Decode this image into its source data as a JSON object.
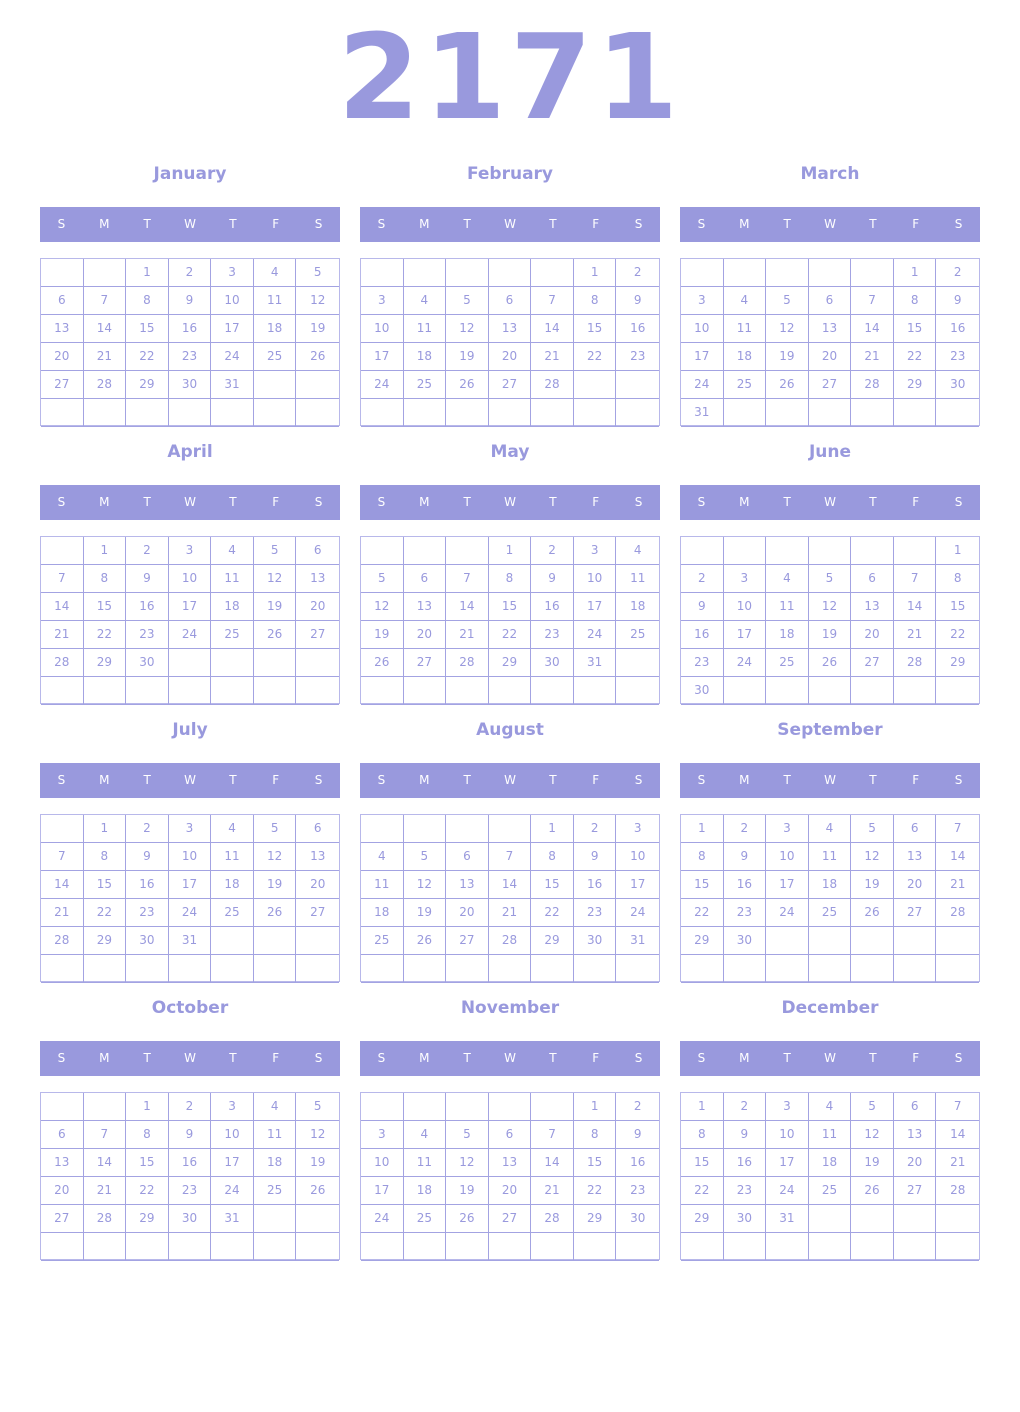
{
  "year": "2171",
  "colors": {
    "accent": "#9999dd",
    "header_text": "#ffffff"
  },
  "weekdays": [
    "S",
    "M",
    "T",
    "W",
    "T",
    "F",
    "S"
  ],
  "months": [
    {
      "name": "January",
      "first_weekday": 2,
      "days": 31
    },
    {
      "name": "February",
      "first_weekday": 5,
      "days": 28
    },
    {
      "name": "March",
      "first_weekday": 5,
      "days": 31
    },
    {
      "name": "April",
      "first_weekday": 1,
      "days": 30
    },
    {
      "name": "May",
      "first_weekday": 3,
      "days": 31
    },
    {
      "name": "June",
      "first_weekday": 6,
      "days": 30
    },
    {
      "name": "July",
      "first_weekday": 1,
      "days": 31
    },
    {
      "name": "August",
      "first_weekday": 4,
      "days": 31
    },
    {
      "name": "September",
      "first_weekday": 0,
      "days": 30
    },
    {
      "name": "October",
      "first_weekday": 2,
      "days": 31
    },
    {
      "name": "November",
      "first_weekday": 5,
      "days": 30
    },
    {
      "name": "December",
      "first_weekday": 0,
      "days": 31
    }
  ]
}
